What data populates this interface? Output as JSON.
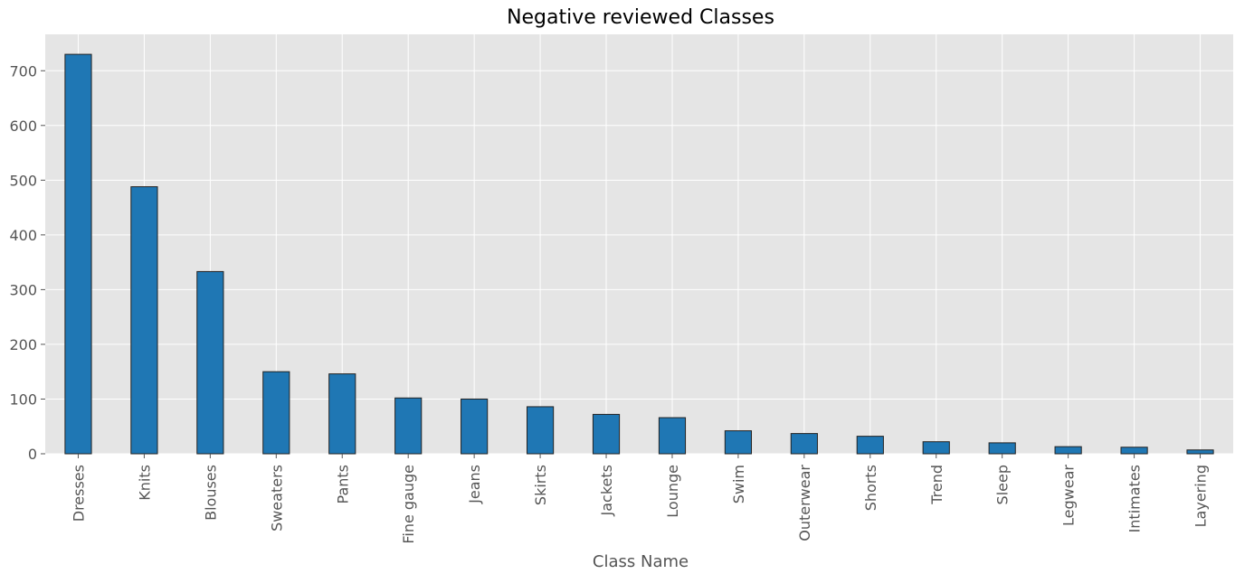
{
  "chart_data": {
    "type": "bar",
    "title": "Negative reviewed Classes",
    "xlabel": "Class Name",
    "ylabel": "",
    "categories": [
      "Dresses",
      "Knits",
      "Blouses",
      "Sweaters",
      "Pants",
      "Fine gauge",
      "Jeans",
      "Skirts",
      "Jackets",
      "Lounge",
      "Swim",
      "Outerwear",
      "Shorts",
      "Trend",
      "Sleep",
      "Legwear",
      "Intimates",
      "Layering"
    ],
    "values": [
      730,
      488,
      333,
      150,
      146,
      102,
      100,
      86,
      72,
      66,
      42,
      37,
      32,
      22,
      20,
      13,
      12,
      7
    ],
    "yticks": [
      0,
      100,
      200,
      300,
      400,
      500,
      600,
      700
    ],
    "ylim": [
      0,
      766.5
    ],
    "grid": true,
    "colors": {
      "bar": "#1f77b4",
      "bar_edge": "#222222",
      "plot_background": "#e5e5e5",
      "grid": "#ffffff",
      "text": "#555555"
    }
  }
}
